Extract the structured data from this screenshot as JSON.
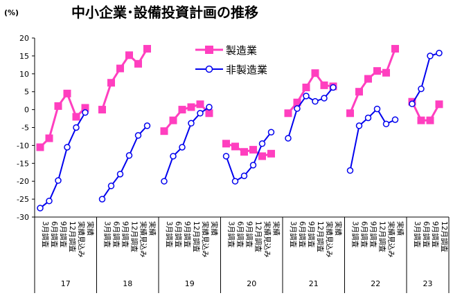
{
  "chart_data": {
    "type": "line",
    "title": "中小企業･設備投資計画の推移",
    "unit_label": "(%)",
    "ylim": [
      -30,
      20
    ],
    "yticks": [
      20,
      15,
      10,
      5,
      0,
      -5,
      -10,
      -15,
      -20,
      -25,
      -30
    ],
    "grid": false,
    "legend_position": "top-center",
    "category_labels": [
      "3月調査",
      "6月調査",
      "9月調査",
      "12月調査",
      "実績見込み",
      "実績"
    ],
    "years": [
      {
        "year": "17",
        "categories": [
          "3月調査",
          "6月調査",
          "9月調査",
          "12月調査",
          "実績見込み",
          "実績"
        ]
      },
      {
        "year": "18",
        "categories": [
          "3月調査",
          "6月調査",
          "9月調査",
          "12月調査",
          "実績見込み",
          "実績"
        ]
      },
      {
        "year": "19",
        "categories": [
          "3月調査",
          "6月調査",
          "9月調査",
          "12月調査",
          "実績見込み",
          "実績"
        ]
      },
      {
        "year": "20",
        "categories": [
          "3月調査",
          "6月調査",
          "9月調査",
          "12月調査",
          "実績見込み",
          "実績"
        ]
      },
      {
        "year": "21",
        "categories": [
          "3月調査",
          "6月調査",
          "9月調査",
          "12月調査",
          "実績見込み",
          "実績"
        ]
      },
      {
        "year": "22",
        "categories": [
          "3月調査",
          "6月調査",
          "9月調査",
          "12月調査",
          "実績見込み",
          "実績"
        ]
      },
      {
        "year": "23",
        "categories": [
          "3月調査",
          "6月調査",
          "9月調査",
          "12月調査"
        ]
      }
    ],
    "series": [
      {
        "name": "製造業",
        "color": "#ff3fbf",
        "marker": "square",
        "values": [
          [
            -10.5,
            -8.0,
            1.0,
            4.5,
            -2.0,
            0.5
          ],
          [
            0.0,
            7.5,
            11.5,
            15.2,
            12.8,
            17.0
          ],
          [
            -6.0,
            -3.0,
            0.0,
            0.7,
            1.5,
            -1.0
          ],
          [
            -9.5,
            -10.3,
            -11.8,
            -11.2,
            -13.0,
            -12.3
          ],
          [
            -1.0,
            2.0,
            6.2,
            10.2,
            6.8,
            6.5
          ],
          [
            -1.0,
            5.0,
            8.6,
            10.8,
            10.3,
            17.0
          ],
          [
            2.2,
            -3.0,
            -3.0,
            1.5
          ]
        ]
      },
      {
        "name": "非製造業",
        "color": "#0000ee",
        "marker": "circle",
        "values": [
          [
            -27.5,
            -25.5,
            -19.8,
            -10.5,
            -5.0,
            -0.8
          ],
          [
            -25.0,
            -21.3,
            -18.0,
            -12.8,
            -7.2,
            -4.5
          ],
          [
            -20.0,
            -13.0,
            -10.5,
            -3.8,
            -1.0,
            0.7
          ],
          [
            -13.0,
            -20.0,
            -18.5,
            -15.5,
            -9.5,
            -6.3
          ],
          [
            -8.0,
            0.3,
            3.8,
            2.3,
            3.2,
            6.2
          ],
          [
            -17.0,
            -4.5,
            -2.3,
            0.2,
            -4.0,
            -2.8
          ],
          [
            1.6,
            5.8,
            15.0,
            15.8
          ]
        ]
      }
    ]
  }
}
